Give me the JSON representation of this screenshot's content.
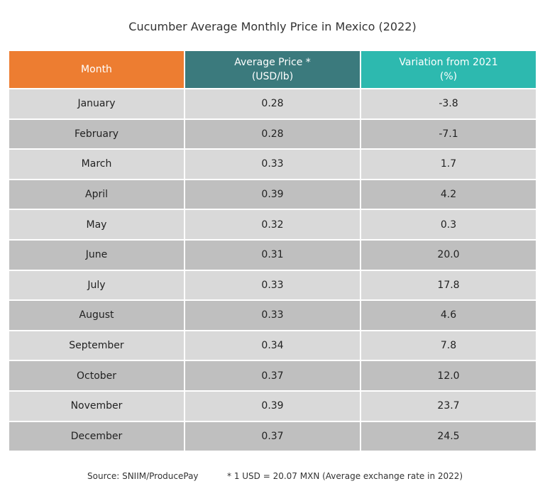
{
  "title": "Cucumber Average Monthly Price in Mexico (2022)",
  "table": {
    "header": [
      [
        "Month"
      ],
      [
        "Average Price *",
        "(USD/lb)"
      ],
      [
        "Variation from 2021",
        "(%)"
      ]
    ],
    "rows": [
      [
        "January",
        "0.28",
        "-3.8"
      ],
      [
        "February",
        "0.28",
        "-7.1"
      ],
      [
        "March",
        "0.33",
        "1.7"
      ],
      [
        "April",
        "0.39",
        "4.2"
      ],
      [
        "May",
        "0.32",
        "0.3"
      ],
      [
        "June",
        "0.31",
        "20.0"
      ],
      [
        "July",
        "0.33",
        "17.8"
      ],
      [
        "August",
        "0.33",
        "4.6"
      ],
      [
        "September",
        "0.34",
        "7.8"
      ],
      [
        "October",
        "0.37",
        "12.0"
      ],
      [
        "November",
        "0.39",
        "23.7"
      ],
      [
        "December",
        "0.37",
        "24.5"
      ]
    ]
  },
  "footer": {
    "source": "Source: SNIIM/ProducePay",
    "note": "* 1 USD = 20.07 MXN (Average exchange rate in 2022)"
  }
}
